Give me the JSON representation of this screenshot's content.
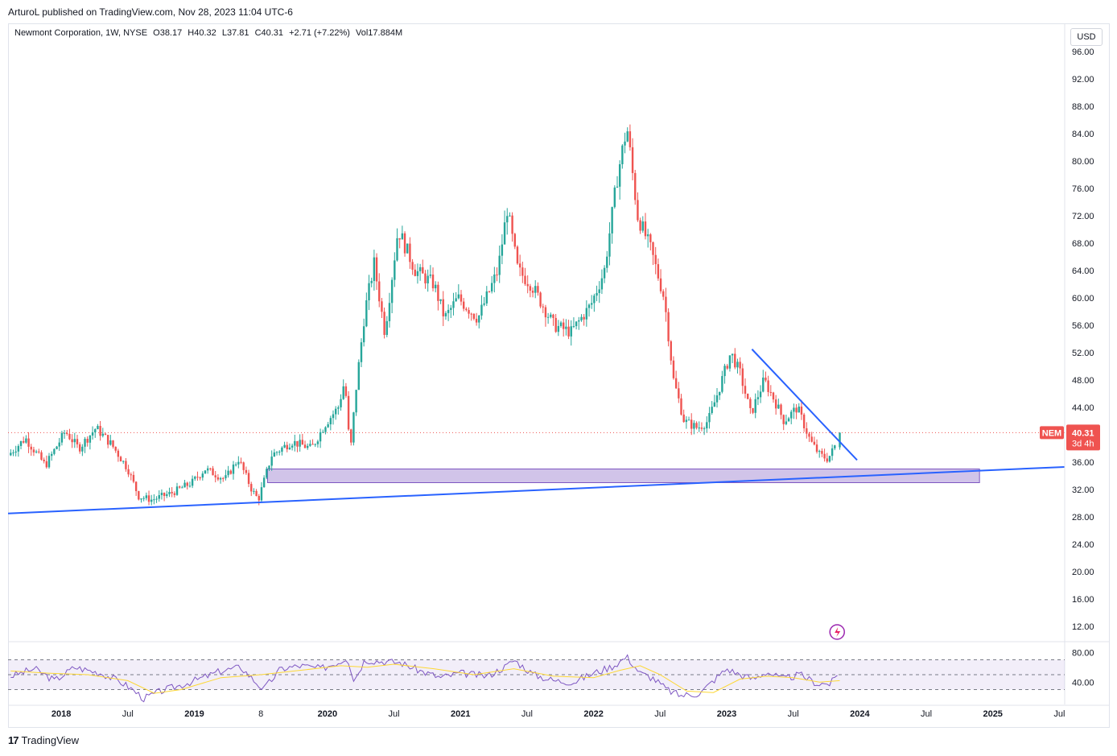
{
  "header": {
    "published": "ArturoL published on TradingView.com, Nov 28, 2023 11:04 UTC-6"
  },
  "legend": {
    "symbol": "Newmont Corporation, 1W, NYSE",
    "open": "O38.17",
    "high": "H40.32",
    "low": "L37.81",
    "close": "C40.31",
    "change": "+2.71 (+7.22%)",
    "volume": "Vol17.884M"
  },
  "currency": "USD",
  "price_tag": {
    "ticker": "NEM",
    "price": "40.31",
    "countdown": "3d 4h"
  },
  "footer": {
    "brand": "TradingView",
    "logo": "17"
  },
  "colors": {
    "up": "#26a69a",
    "down": "#ef5350",
    "trend": "#2962ff",
    "zone": "#b39ddb",
    "rsi": "#7e57c2",
    "rsi_ma": "#fdd835"
  },
  "chart_data": {
    "type": "candlestick",
    "title": "Newmont Corporation, 1W, NYSE",
    "y_axis": {
      "ticks": [
        96,
        92,
        88,
        84,
        80,
        76,
        72,
        68,
        64,
        60,
        56,
        52,
        48,
        44,
        40,
        36,
        32,
        28,
        24,
        20,
        16,
        12
      ],
      "tick_labels": [
        "96.00",
        "92.00",
        "88.00",
        "84.00",
        "80.00",
        "76.00",
        "72.00",
        "68.00",
        "64.00",
        "60.00",
        "56.00",
        "52.00",
        "48.00",
        "44.00",
        "40.00",
        "36.00",
        "32.00",
        "28.00",
        "24.00",
        "20.00",
        "16.00",
        "12.00"
      ],
      "range": [
        10,
        100
      ]
    },
    "x_axis": {
      "ticks": [
        {
          "t": 2018.0,
          "label": "2018"
        },
        {
          "t": 2018.5,
          "label": "Jul"
        },
        {
          "t": 2019.0,
          "label": "2019"
        },
        {
          "t": 2019.5,
          "label": "8"
        },
        {
          "t": 2020.0,
          "label": "2020"
        },
        {
          "t": 2020.5,
          "label": "Jul"
        },
        {
          "t": 2021.0,
          "label": "2021"
        },
        {
          "t": 2021.5,
          "label": "Jul"
        },
        {
          "t": 2022.0,
          "label": "2022"
        },
        {
          "t": 2022.5,
          "label": "Jul"
        },
        {
          "t": 2023.0,
          "label": "2023"
        },
        {
          "t": 2023.5,
          "label": "Jul"
        },
        {
          "t": 2024.0,
          "label": "2024"
        },
        {
          "t": 2024.5,
          "label": "Jul"
        },
        {
          "t": 2025.0,
          "label": "2025"
        },
        {
          "t": 2025.5,
          "label": "Jul"
        }
      ],
      "range": [
        2017.6,
        2025.54
      ]
    },
    "price_path": [
      [
        2017.62,
        37
      ],
      [
        2017.75,
        39.5
      ],
      [
        2017.9,
        35.5
      ],
      [
        2018.05,
        40.5
      ],
      [
        2018.15,
        38
      ],
      [
        2018.28,
        41
      ],
      [
        2018.4,
        38.5
      ],
      [
        2018.52,
        35
      ],
      [
        2018.6,
        31
      ],
      [
        2018.7,
        30.5
      ],
      [
        2018.85,
        31.5
      ],
      [
        2019.0,
        33
      ],
      [
        2019.1,
        35
      ],
      [
        2019.25,
        33.5
      ],
      [
        2019.35,
        36.5
      ],
      [
        2019.45,
        32
      ],
      [
        2019.5,
        30.5
      ],
      [
        2019.6,
        37
      ],
      [
        2019.75,
        39
      ],
      [
        2019.9,
        38
      ],
      [
        2020.0,
        41.5
      ],
      [
        2020.1,
        44
      ],
      [
        2020.15,
        48
      ],
      [
        2020.19,
        37
      ],
      [
        2020.23,
        46
      ],
      [
        2020.3,
        58
      ],
      [
        2020.37,
        65
      ],
      [
        2020.45,
        55
      ],
      [
        2020.55,
        70
      ],
      [
        2020.68,
        64
      ],
      [
        2020.82,
        62
      ],
      [
        2020.9,
        57
      ],
      [
        2021.0,
        60
      ],
      [
        2021.15,
        57
      ],
      [
        2021.3,
        64
      ],
      [
        2021.37,
        73
      ],
      [
        2021.45,
        64
      ],
      [
        2021.55,
        62
      ],
      [
        2021.72,
        56
      ],
      [
        2021.85,
        55
      ],
      [
        2022.0,
        59
      ],
      [
        2022.1,
        64
      ],
      [
        2022.2,
        78
      ],
      [
        2022.27,
        85
      ],
      [
        2022.35,
        72
      ],
      [
        2022.45,
        67
      ],
      [
        2022.55,
        60
      ],
      [
        2022.62,
        48
      ],
      [
        2022.7,
        42
      ],
      [
        2022.8,
        41
      ],
      [
        2022.88,
        42
      ],
      [
        2022.95,
        46
      ],
      [
        2023.05,
        52
      ],
      [
        2023.12,
        49
      ],
      [
        2023.2,
        43
      ],
      [
        2023.3,
        48
      ],
      [
        2023.38,
        45
      ],
      [
        2023.45,
        42
      ],
      [
        2023.55,
        44
      ],
      [
        2023.65,
        39
      ],
      [
        2023.72,
        37
      ],
      [
        2023.78,
        36.5
      ],
      [
        2023.83,
        38.17
      ],
      [
        2023.85,
        40.31
      ]
    ],
    "last_candle": {
      "open": 38.17,
      "high": 40.32,
      "low": 37.81,
      "close": 40.31
    },
    "current_price": 40.31,
    "drawings": {
      "support_trendline": [
        [
          2017.6,
          28.5
        ],
        [
          2025.54,
          35.3
        ]
      ],
      "descending_trendline": [
        [
          2023.19,
          52.5
        ],
        [
          2023.98,
          36.3
        ]
      ],
      "demand_zone": {
        "t_start": 2019.55,
        "t_end": 2024.9,
        "price_low": 33.0,
        "price_high": 35.0
      }
    },
    "rsi": {
      "levels": [
        70,
        50,
        30
      ],
      "tick_values": [
        80,
        40
      ],
      "tick_labels": [
        "80.00",
        "40.00"
      ],
      "range": [
        10,
        90
      ],
      "path": [
        [
          2017.62,
          48
        ],
        [
          2017.8,
          58
        ],
        [
          2017.95,
          42
        ],
        [
          2018.1,
          60
        ],
        [
          2018.3,
          52
        ],
        [
          2018.45,
          40
        ],
        [
          2018.55,
          28
        ],
        [
          2018.62,
          18
        ],
        [
          2018.75,
          28
        ],
        [
          2018.9,
          36
        ],
        [
          2019.05,
          45
        ],
        [
          2019.2,
          55
        ],
        [
          2019.35,
          60
        ],
        [
          2019.45,
          42
        ],
        [
          2019.52,
          30
        ],
        [
          2019.65,
          58
        ],
        [
          2019.8,
          62
        ],
        [
          2019.95,
          58
        ],
        [
          2020.1,
          68
        ],
        [
          2020.15,
          74
        ],
        [
          2020.2,
          42
        ],
        [
          2020.28,
          70
        ],
        [
          2020.4,
          68
        ],
        [
          2020.55,
          66
        ],
        [
          2020.7,
          55
        ],
        [
          2020.85,
          46
        ],
        [
          2021.0,
          52
        ],
        [
          2021.2,
          48
        ],
        [
          2021.35,
          62
        ],
        [
          2021.4,
          70
        ],
        [
          2021.55,
          50
        ],
        [
          2021.7,
          42
        ],
        [
          2021.85,
          40
        ],
        [
          2022.0,
          52
        ],
        [
          2022.15,
          62
        ],
        [
          2022.25,
          74
        ],
        [
          2022.35,
          52
        ],
        [
          2022.45,
          45
        ],
        [
          2022.55,
          30
        ],
        [
          2022.65,
          22
        ],
        [
          2022.8,
          25
        ],
        [
          2022.9,
          42
        ],
        [
          2023.0,
          58
        ],
        [
          2023.1,
          50
        ],
        [
          2023.2,
          44
        ],
        [
          2023.3,
          54
        ],
        [
          2023.42,
          44
        ],
        [
          2023.55,
          50
        ],
        [
          2023.68,
          38
        ],
        [
          2023.78,
          38
        ],
        [
          2023.82,
          46
        ],
        [
          2023.85,
          56
        ]
      ],
      "ma_path": [
        [
          2017.62,
          55
        ],
        [
          2017.9,
          52
        ],
        [
          2018.2,
          50
        ],
        [
          2018.5,
          42
        ],
        [
          2018.7,
          25
        ],
        [
          2018.9,
          30
        ],
        [
          2019.2,
          46
        ],
        [
          2019.5,
          50
        ],
        [
          2019.8,
          56
        ],
        [
          2020.1,
          62
        ],
        [
          2020.3,
          60
        ],
        [
          2020.5,
          64
        ],
        [
          2020.8,
          58
        ],
        [
          2021.1,
          50
        ],
        [
          2021.4,
          58
        ],
        [
          2021.7,
          48
        ],
        [
          2022.0,
          46
        ],
        [
          2022.2,
          56
        ],
        [
          2022.35,
          62
        ],
        [
          2022.5,
          50
        ],
        [
          2022.7,
          28
        ],
        [
          2022.9,
          26
        ],
        [
          2023.1,
          44
        ],
        [
          2023.3,
          48
        ],
        [
          2023.5,
          46
        ],
        [
          2023.7,
          40
        ],
        [
          2023.85,
          42
        ]
      ]
    }
  }
}
